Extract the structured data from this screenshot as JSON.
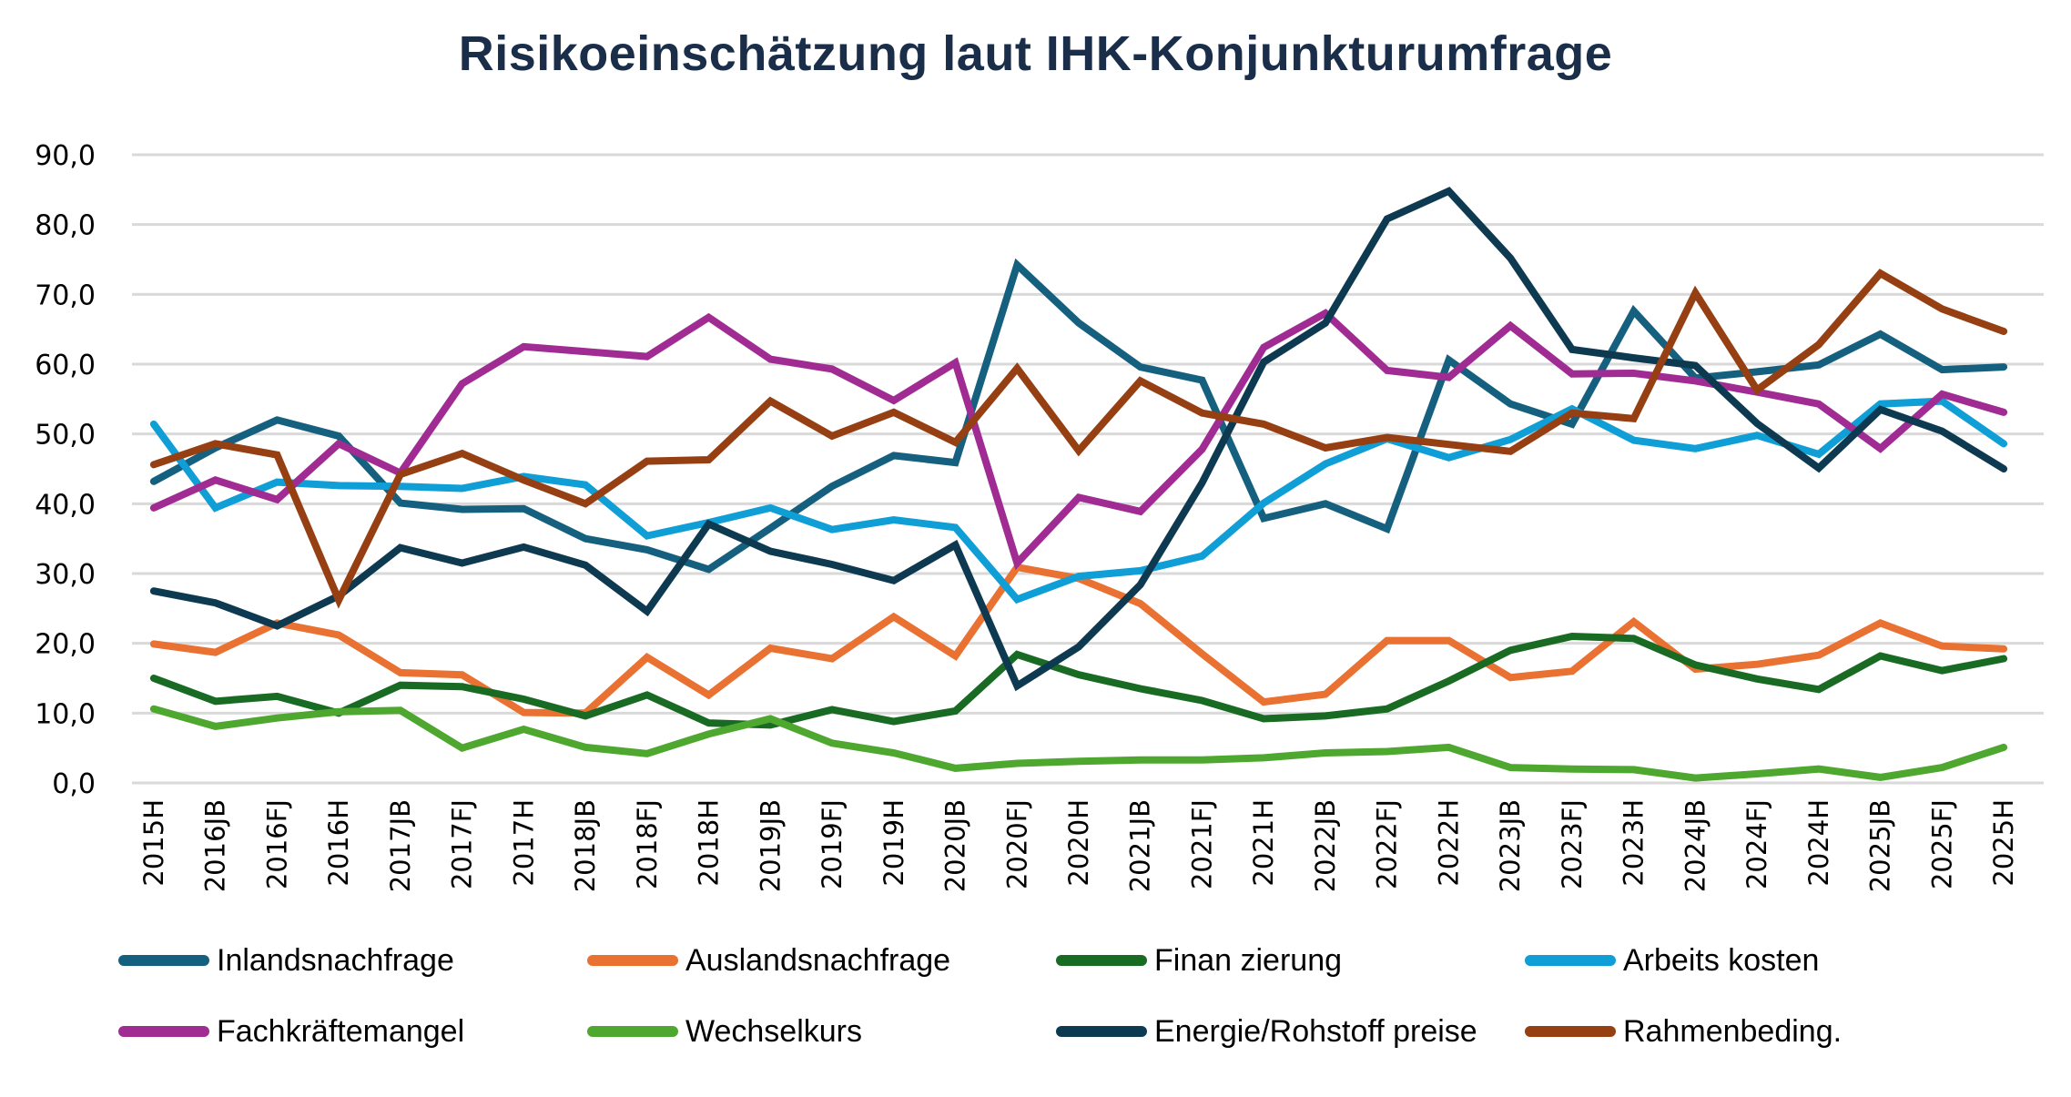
{
  "chart_data": {
    "type": "line",
    "title": "Risikoeinschätzung laut IHK-Konjunkturumfrage",
    "xlabel": "",
    "ylabel": "",
    "ylim": [
      0,
      90
    ],
    "yticks": [
      "0,0",
      "10,0",
      "20,0",
      "30,0",
      "40,0",
      "50,0",
      "60,0",
      "70,0",
      "80,0",
      "90,0"
    ],
    "ytick_values": [
      0,
      10,
      20,
      30,
      40,
      50,
      60,
      70,
      80,
      90
    ],
    "grid": true,
    "legend_position": "bottom",
    "categories": [
      "2015H",
      "2016JB",
      "2016FJ",
      "2016H",
      "2017JB",
      "2017FJ",
      "2017H",
      "2018JB",
      "2018FJ",
      "2018H",
      "2019JB",
      "2019FJ",
      "2019H",
      "2020JB",
      "2020FJ",
      "2020H",
      "2021JB",
      "2021FJ",
      "2021H",
      "2022JB",
      "2022FJ",
      "2022H",
      "2023JB",
      "2023FJ",
      "2023H",
      "2024JB",
      "2024FJ",
      "2024H",
      "2025JB",
      "2025FJ",
      "2025H"
    ],
    "series": [
      {
        "name": "Inlandsnachfrage",
        "color": "#16607f",
        "values": [
          43.2,
          48.0,
          52.0,
          49.7,
          40.1,
          39.2,
          39.3,
          35.0,
          33.4,
          30.6,
          36.5,
          42.5,
          46.9,
          45.9,
          74.2,
          65.9,
          59.6,
          57.7,
          37.9,
          40.0,
          36.4,
          60.6,
          54.3,
          51.4,
          67.6,
          58.0,
          58.9,
          59.9,
          64.3,
          59.2,
          59.6
        ]
      },
      {
        "name": "Auslandsnachfrage",
        "color": "#e97132",
        "values": [
          19.9,
          18.7,
          22.9,
          21.2,
          15.8,
          15.5,
          10.1,
          10.0,
          18.0,
          12.6,
          19.3,
          17.8,
          23.8,
          18.2,
          30.9,
          29.3,
          25.7,
          18.5,
          11.6,
          12.7,
          20.4,
          20.4,
          15.1,
          16.0,
          23.1,
          16.3,
          17.0,
          18.3,
          22.9,
          19.6,
          19.2
        ]
      },
      {
        "name": "Finan zierung",
        "color": "#196b24",
        "values": [
          15.0,
          11.7,
          12.4,
          10.0,
          14.0,
          13.8,
          12.0,
          9.6,
          12.6,
          8.6,
          8.3,
          10.5,
          8.8,
          10.3,
          18.4,
          15.5,
          13.5,
          11.8,
          9.2,
          9.6,
          10.6,
          14.6,
          19.0,
          21.0,
          20.7,
          16.9,
          14.9,
          13.4,
          18.2,
          16.1,
          17.8
        ]
      },
      {
        "name": "Arbeits kosten",
        "color": "#0f9ed5",
        "values": [
          51.4,
          39.4,
          43.1,
          42.6,
          42.5,
          42.2,
          43.9,
          42.7,
          35.4,
          37.3,
          39.4,
          36.3,
          37.7,
          36.6,
          26.3,
          29.6,
          30.4,
          32.5,
          40.1,
          45.7,
          49.3,
          46.6,
          49.2,
          53.6,
          49.1,
          47.9,
          49.8,
          47.1,
          54.3,
          54.7,
          48.6
        ]
      },
      {
        "name": "Fachkräftemangel",
        "color": "#a02b93",
        "values": [
          39.4,
          43.4,
          40.6,
          48.6,
          44.4,
          57.2,
          62.5,
          61.8,
          61.1,
          66.7,
          60.7,
          59.3,
          54.8,
          60.2,
          31.5,
          40.9,
          38.9,
          47.8,
          62.4,
          67.3,
          59.1,
          58.1,
          65.5,
          58.6,
          58.7,
          57.6,
          56.0,
          54.3,
          47.9,
          55.7,
          53.1
        ]
      },
      {
        "name": "Wechselkurs",
        "color": "#4ea72e",
        "values": [
          10.6,
          8.1,
          9.3,
          10.2,
          10.4,
          5.0,
          7.7,
          5.1,
          4.2,
          7.0,
          9.2,
          5.7,
          4.3,
          2.1,
          2.8,
          3.1,
          3.3,
          3.3,
          3.6,
          4.3,
          4.5,
          5.1,
          2.2,
          2.0,
          1.9,
          0.7,
          1.3,
          2.0,
          0.8,
          2.2,
          5.1
        ]
      },
      {
        "name": "Energie/Rohstoff preise",
        "color": "#0e3a51",
        "values": [
          27.5,
          25.8,
          22.5,
          26.8,
          33.7,
          31.5,
          33.8,
          31.2,
          24.6,
          37.1,
          33.2,
          31.3,
          29.0,
          34.1,
          13.9,
          19.5,
          28.4,
          43.0,
          60.3,
          65.9,
          80.8,
          84.8,
          75.2,
          62.1,
          60.9,
          59.8,
          51.5,
          45.1,
          53.5,
          50.4,
          45.0
        ]
      },
      {
        "name": "Rahmenbeding.",
        "color": "#953f12",
        "values": [
          45.6,
          48.6,
          47.0,
          26.2,
          44.2,
          47.2,
          43.4,
          40.0,
          46.1,
          46.3,
          54.7,
          49.7,
          53.1,
          48.8,
          59.4,
          47.6,
          57.6,
          53.0,
          51.4,
          48.0,
          49.5,
          48.5,
          47.5,
          53.0,
          52.2,
          70.2,
          56.3,
          62.8,
          73.0,
          67.9,
          64.7
        ]
      }
    ]
  }
}
